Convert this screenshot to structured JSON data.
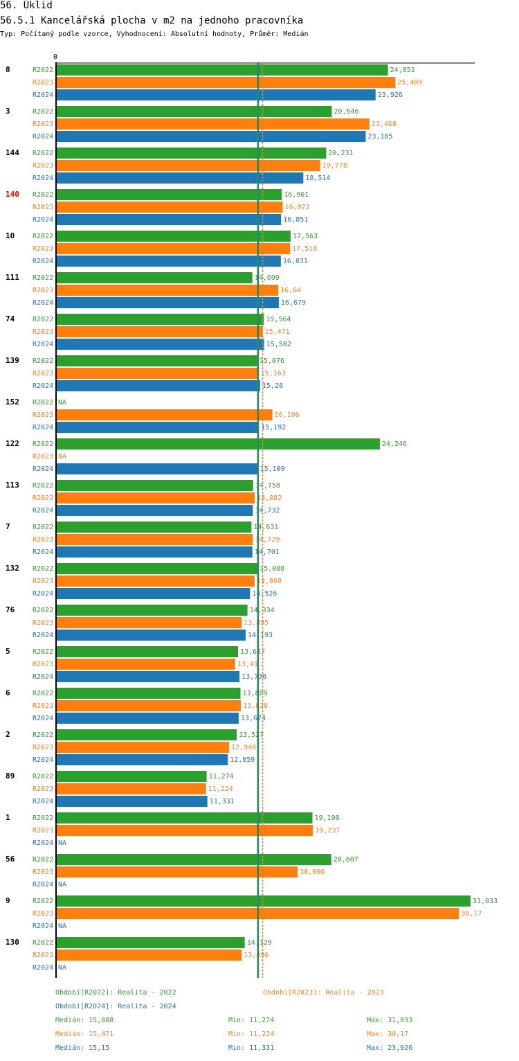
{
  "header": {
    "title": "56. Úklid",
    "subtitle": "56.5.1 Kancelářská plocha v m2 na jednoho pracovníka",
    "type_line": "Typ: Počítaný podle vzorce, Vyhodnocení: Absolutní hodnoty, Průměr: Medián"
  },
  "chart_data": {
    "type": "bar",
    "orientation": "horizontal",
    "title": "56.5.1 Kancelářská plocha v m2 na jednoho pracovníka",
    "x_axis_zero_label": "0",
    "xlim": [
      0,
      31.5
    ],
    "na_label": "NA",
    "series": [
      {
        "name": "R2022",
        "color": "#2ca02c"
      },
      {
        "name": "R2023",
        "color": "#ff7f0e"
      },
      {
        "name": "R2024",
        "color": "#1f77b4"
      }
    ],
    "groups": [
      {
        "label": "8",
        "highlight": false,
        "values": [
          24.851,
          25.409,
          23.926
        ],
        "labels": [
          "24,851",
          "25,409",
          "23,926"
        ]
      },
      {
        "label": "3",
        "highlight": false,
        "values": [
          20.646,
          23.468,
          23.185
        ],
        "labels": [
          "20,646",
          "23,468",
          "23,185"
        ]
      },
      {
        "label": "144",
        "highlight": false,
        "values": [
          20.231,
          19.778,
          18.514
        ],
        "labels": [
          "20,231",
          "19,778",
          "18,514"
        ]
      },
      {
        "label": "140",
        "highlight": true,
        "values": [
          16.901,
          16.972,
          16.851
        ],
        "labels": [
          "16,901",
          "16,972",
          "16,851"
        ]
      },
      {
        "label": "10",
        "highlight": false,
        "values": [
          17.563,
          17.518,
          16.831
        ],
        "labels": [
          "17,563",
          "17,518",
          "16,831"
        ]
      },
      {
        "label": "111",
        "highlight": false,
        "values": [
          14.699,
          16.64,
          16.679
        ],
        "labels": [
          "14,699",
          "16,64",
          "16,679"
        ]
      },
      {
        "label": "74",
        "highlight": false,
        "values": [
          15.564,
          15.471,
          15.582
        ],
        "labels": [
          "15,564",
          "15,471",
          "15,582"
        ]
      },
      {
        "label": "139",
        "highlight": false,
        "values": [
          15.076,
          15.163,
          15.28
        ],
        "labels": [
          "15,076",
          "15,163",
          "15,28"
        ]
      },
      {
        "label": "152",
        "highlight": false,
        "values": [
          null,
          16.196,
          15.192
        ],
        "labels": [
          "NA",
          "16,196",
          "15,192"
        ]
      },
      {
        "label": "122",
        "highlight": false,
        "values": [
          24.246,
          null,
          15.109
        ],
        "labels": [
          "24,246",
          "NA",
          "15,109"
        ]
      },
      {
        "label": "113",
        "highlight": false,
        "values": [
          14.758,
          14.882,
          14.732
        ],
        "labels": [
          "14,758",
          "14,882",
          "14,732"
        ]
      },
      {
        "label": "7",
        "highlight": false,
        "values": [
          14.631,
          14.729,
          14.701
        ],
        "labels": [
          "14,631",
          "14,729",
          "14,701"
        ]
      },
      {
        "label": "132",
        "highlight": false,
        "values": [
          15.088,
          14.868,
          14.526
        ],
        "labels": [
          "15,088",
          "14,868",
          "14,526"
        ]
      },
      {
        "label": "76",
        "highlight": false,
        "values": [
          14.334,
          13.895,
          14.193
        ],
        "labels": [
          "14,334",
          "13,895",
          "14,193"
        ]
      },
      {
        "label": "5",
        "highlight": false,
        "values": [
          13.627,
          13.41,
          13.738
        ],
        "labels": [
          "13,627",
          "13,41",
          "13,738"
        ]
      },
      {
        "label": "6",
        "highlight": false,
        "values": [
          13.809,
          13.838,
          13.674
        ],
        "labels": [
          "13,809",
          "13,838",
          "13,674"
        ]
      },
      {
        "label": "2",
        "highlight": false,
        "values": [
          13.527,
          12.948,
          12.859
        ],
        "labels": [
          "13,527",
          "12,948",
          "12,859"
        ]
      },
      {
        "label": "89",
        "highlight": false,
        "values": [
          11.274,
          11.224,
          11.331
        ],
        "labels": [
          "11,274",
          "11,224",
          "11,331"
        ]
      },
      {
        "label": "1",
        "highlight": false,
        "values": [
          19.198,
          19.237,
          null
        ],
        "labels": [
          "19,198",
          "19,237",
          "NA"
        ]
      },
      {
        "label": "56",
        "highlight": false,
        "values": [
          20.607,
          18.096,
          null
        ],
        "labels": [
          "20,607",
          "18,096",
          "NA"
        ]
      },
      {
        "label": "9",
        "highlight": false,
        "values": [
          31.033,
          30.17,
          null
        ],
        "labels": [
          "31,033",
          "30,17",
          "NA"
        ]
      },
      {
        "label": "130",
        "highlight": false,
        "values": [
          14.129,
          13.896,
          null
        ],
        "labels": [
          "14,129",
          "13,896",
          "NA"
        ]
      }
    ],
    "medians": [
      15.088,
      15.471,
      15.15
    ]
  },
  "legend": {
    "period_r2022": "Období[R2022]: Realita - 2022",
    "period_r2023": "Období[R2023]: Realita - 2023",
    "period_r2024": "Období[R2024]: Realita - 2024",
    "stats": [
      {
        "median": "Medián: 15,088",
        "min": "Min: 11,274",
        "max": "Max: 31,033"
      },
      {
        "median": "Medián: 15,471",
        "min": "Min: 11,224",
        "max": "Max: 30,17"
      },
      {
        "median": "Medián: 15,15",
        "min": "Min: 11,331",
        "max": "Max: 23,926"
      }
    ]
  }
}
